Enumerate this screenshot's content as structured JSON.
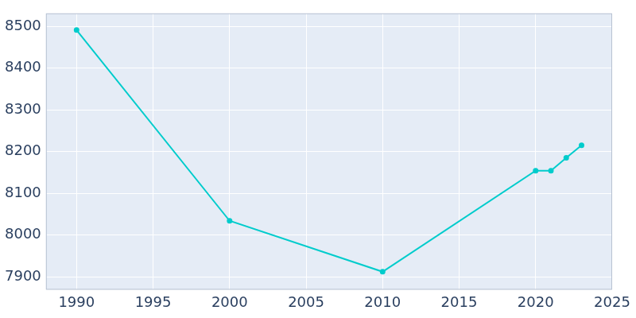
{
  "chart_data": {
    "type": "line",
    "x": [
      1990,
      2000,
      2010,
      2020,
      2021,
      2022,
      2023
    ],
    "values": [
      8491,
      8034,
      7912,
      8154,
      8154,
      8185,
      8215
    ],
    "color": "#00cccc",
    "marker": "circle",
    "xlim": [
      1988,
      2025
    ],
    "xticks": [
      1990,
      1995,
      2000,
      2005,
      2010,
      2015,
      2020,
      2025
    ],
    "ylim": [
      7869,
      8531
    ],
    "yticks": [
      7900,
      8000,
      8100,
      8200,
      8300,
      8400,
      8500
    ],
    "grid": true
  }
}
